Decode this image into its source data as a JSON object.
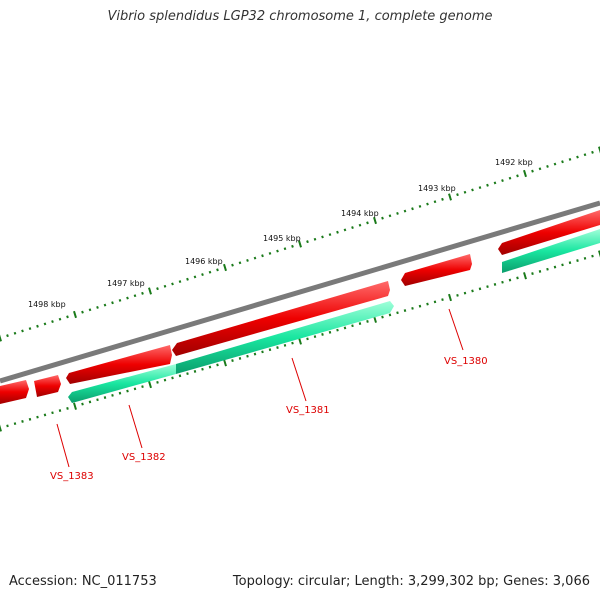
{
  "title": "Vibrio splendidus LGP32 chromosome 1, complete genome",
  "accession": "Accession: NC_011753",
  "summary": "Topology: circular; Length: 3,299,302 bp; Genes: 3,066",
  "colors": {
    "backbone": "#7a7a7a",
    "forward_gene": "#ee0000",
    "reverse_gene": "#19e6a0",
    "tick": "#1a7a1a",
    "label": "#dd0000"
  },
  "scale_labels": [
    "1492 kbp",
    "1493 kbp",
    "1494 kbp",
    "1495 kbp",
    "1496 kbp",
    "1497 kbp",
    "1498 kbp"
  ],
  "gene_labels": [
    "VS_1380",
    "VS_1381",
    "VS_1382",
    "VS_1383"
  ]
}
